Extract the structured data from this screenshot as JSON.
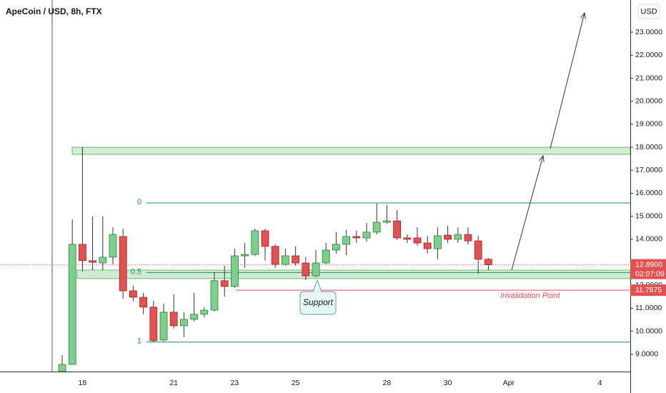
{
  "chart_data": {
    "type": "candlestick",
    "title": "ApeCoin / USD, 8h, FTX",
    "currency": "USD",
    "categories": [
      null,
      null,
      "18",
      null,
      null,
      null,
      null,
      null,
      null,
      null,
      null,
      "21",
      null,
      null,
      null,
      null,
      null,
      "23",
      null,
      null,
      null,
      null,
      null,
      "25",
      null,
      null,
      null,
      null,
      null,
      null,
      null,
      null,
      "28",
      null,
      null,
      null,
      null,
      null,
      "30",
      null,
      null,
      null,
      null,
      null,
      "Apr",
      null,
      null,
      null,
      null,
      null,
      null,
      null,
      null,
      "4",
      null,
      null,
      null
    ],
    "open": [
      8.25,
      8.56,
      13.78,
      13.07,
      12.97,
      13.22,
      14.12,
      11.76,
      11.48,
      11.05,
      9.62,
      10.83,
      10.24,
      10.52,
      10.74,
      10.92,
      12.2,
      11.95,
      13.28,
      13.34,
      14.37,
      13.69,
      12.91,
      13.28,
      12.97,
      12.41,
      12.97,
      13.53,
      13.78,
      14.12,
      14.06,
      14.31,
      14.74,
      14.8,
      14.06,
      14.06,
      13.84,
      13.59,
      14.18,
      14.0,
      14.21,
      13.93,
      13.13,
      null,
      null,
      null,
      null,
      null,
      null,
      null,
      null,
      null,
      null,
      null,
      null,
      null,
      null
    ],
    "close": [
      8.56,
      13.78,
      13.07,
      13.0,
      13.22,
      14.21,
      11.76,
      11.48,
      11.05,
      9.59,
      10.83,
      10.24,
      10.52,
      10.74,
      10.92,
      12.2,
      11.95,
      13.28,
      13.34,
      14.37,
      13.69,
      12.91,
      13.28,
      12.97,
      12.41,
      12.97,
      13.53,
      13.78,
      14.12,
      14.06,
      14.31,
      14.74,
      14.8,
      14.06,
      14.0,
      13.84,
      13.59,
      14.15,
      14.0,
      14.21,
      13.93,
      13.13,
      12.89,
      null,
      null,
      null,
      null,
      null,
      null,
      null,
      null,
      null,
      null,
      null,
      null,
      null,
      null
    ],
    "high": [
      8.97,
      14.87,
      18.0,
      14.99,
      14.99,
      14.52,
      14.46,
      11.98,
      11.67,
      11.33,
      11.2,
      11.61,
      10.83,
      11.67,
      11.05,
      12.57,
      12.85,
      13.59,
      13.84,
      14.46,
      14.46,
      13.78,
      13.59,
      13.69,
      13.22,
      13.53,
      13.84,
      14.31,
      14.4,
      14.37,
      14.71,
      15.55,
      15.49,
      15.27,
      14.21,
      14.52,
      14.15,
      14.52,
      14.59,
      14.52,
      14.52,
      14.15,
      13.19,
      null,
      null,
      null,
      null,
      null,
      null,
      null,
      null,
      null,
      null,
      null,
      null,
      null,
      null
    ],
    "low": [
      8.25,
      8.56,
      12.6,
      12.66,
      12.66,
      12.91,
      11.42,
      11.3,
      10.74,
      9.53,
      9.56,
      10.12,
      9.74,
      10.43,
      10.61,
      10.86,
      11.51,
      11.89,
      12.75,
      13.28,
      13.07,
      12.75,
      12.85,
      12.85,
      12.23,
      12.35,
      12.91,
      13.38,
      13.31,
      13.84,
      13.9,
      14.21,
      14.68,
      13.97,
      13.84,
      13.72,
      13.38,
      13.13,
      13.84,
      13.84,
      13.78,
      12.51,
      12.66,
      null,
      null,
      null,
      null,
      null,
      null,
      null,
      null,
      null,
      null,
      null,
      null,
      null,
      null
    ],
    "up_color": "#7ccf8e",
    "down_color": "#e25252",
    "ylim": [
      8.25,
      24.4
    ],
    "yticks": [
      {
        "value": 9,
        "label": "9.0000"
      },
      {
        "value": 10,
        "label": "10.0000"
      },
      {
        "value": 11,
        "label": "11.0000"
      },
      {
        "value": 12,
        "label": "12.0000"
      },
      {
        "value": 13,
        "label": "13.0000"
      },
      {
        "value": 14,
        "label": "14.0000"
      },
      {
        "value": 15,
        "label": "15.0000"
      },
      {
        "value": 16,
        "label": "16.0000"
      },
      {
        "value": 17,
        "label": "17.0000"
      },
      {
        "value": 18,
        "label": "18.0000"
      },
      {
        "value": 19,
        "label": "19.0000"
      },
      {
        "value": 20,
        "label": "20.0000"
      },
      {
        "value": 21,
        "label": "21.0000"
      },
      {
        "value": 22,
        "label": "22.0000"
      },
      {
        "value": 23,
        "label": "23.0000"
      }
    ],
    "fib_levels": [
      {
        "label": "0",
        "value": 15.58
      },
      {
        "label": "0.5",
        "value": 12.555
      },
      {
        "label": "1",
        "value": 9.53
      }
    ],
    "zones": [
      {
        "top": 18.0,
        "bottom": 17.69
      },
      {
        "top": 12.66,
        "bottom": 12.29
      }
    ],
    "last_price": {
      "value": 12.89,
      "label": "12.8900"
    },
    "countdown": "02:07:09",
    "invalidation": {
      "value": 11.7875,
      "label": "11.7875",
      "text": "Invalidation Point"
    },
    "support_label": "Support"
  }
}
